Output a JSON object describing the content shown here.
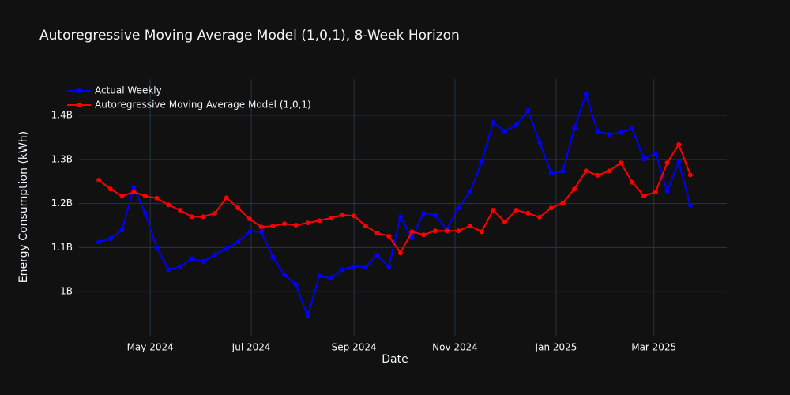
{
  "chart_data": {
    "type": "line",
    "title": "Autoregressive Moving Average Model (1,0,1), 8-Week Horizon",
    "x_label": "Date",
    "y_label": "Energy Consumption (kWh)",
    "grid": true,
    "legend": "top-left",
    "xlim": [
      "2024-03-19",
      "2025-04-14"
    ],
    "xticks": [
      {
        "value": "2024-05-01",
        "label": "May 2024"
      },
      {
        "value": "2024-07-01",
        "label": "Jul 2024"
      },
      {
        "value": "2024-09-01",
        "label": "Sep 2024"
      },
      {
        "value": "2024-11-01",
        "label": "Nov 2024"
      },
      {
        "value": "2025-01-01",
        "label": "Jan 2025"
      },
      {
        "value": "2025-03-01",
        "label": "Mar 2025"
      }
    ],
    "ylim": [
      900000000,
      1482500000
    ],
    "yticks": [
      {
        "value": 1000000000,
        "label": "1B"
      },
      {
        "value": 1100000000,
        "label": "1.1B"
      },
      {
        "value": 1200000000,
        "label": "1.2B"
      },
      {
        "value": 1300000000,
        "label": "1.3B"
      },
      {
        "value": 1400000000,
        "label": "1.4B"
      }
    ],
    "x": [
      "2024-03-31",
      "2024-04-07",
      "2024-04-14",
      "2024-04-21",
      "2024-04-28",
      "2024-05-05",
      "2024-05-12",
      "2024-05-19",
      "2024-05-26",
      "2024-06-02",
      "2024-06-09",
      "2024-06-16",
      "2024-06-23",
      "2024-06-30",
      "2024-07-07",
      "2024-07-14",
      "2024-07-21",
      "2024-07-28",
      "2024-08-04",
      "2024-08-11",
      "2024-08-18",
      "2024-08-25",
      "2024-09-01",
      "2024-09-08",
      "2024-09-15",
      "2024-09-22",
      "2024-09-29",
      "2024-10-06",
      "2024-10-13",
      "2024-10-20",
      "2024-10-27",
      "2024-11-03",
      "2024-11-10",
      "2024-11-17",
      "2024-11-24",
      "2024-12-01",
      "2024-12-08",
      "2024-12-15",
      "2024-12-22",
      "2024-12-29",
      "2025-01-05",
      "2025-01-12",
      "2025-01-19",
      "2025-01-26",
      "2025-02-02",
      "2025-02-09",
      "2025-02-16",
      "2025-02-23",
      "2025-03-02",
      "2025-03-09",
      "2025-03-16",
      "2025-03-23"
    ],
    "series": [
      {
        "name": "Actual Weekly",
        "color": "#0000ff",
        "values": [
          1113000000,
          1120000000,
          1140000000,
          1237000000,
          1178000000,
          1100000000,
          1050000000,
          1057000000,
          1075000000,
          1068000000,
          1084000000,
          1097000000,
          1113000000,
          1136000000,
          1136000000,
          1079000000,
          1038000000,
          1016000000,
          944000000,
          1036000000,
          1030000000,
          1050000000,
          1057000000,
          1056000000,
          1083000000,
          1057000000,
          1170000000,
          1122000000,
          1178000000,
          1174000000,
          1142000000,
          1190000000,
          1226000000,
          1294000000,
          1384000000,
          1364000000,
          1378000000,
          1411000000,
          1339000000,
          1269000000,
          1273000000,
          1371000000,
          1448000000,
          1364000000,
          1357000000,
          1361000000,
          1370000000,
          1301000000,
          1314000000,
          1228000000,
          1294000000,
          1196000000
        ]
      },
      {
        "name": "Autoregressive Moving Average Model (1,0,1)",
        "color": "#ff0000",
        "values": [
          1253000000,
          1233000000,
          1217000000,
          1226000000,
          1217000000,
          1212000000,
          1197000000,
          1185000000,
          1170000000,
          1170000000,
          1178000000,
          1213000000,
          1190000000,
          1165000000,
          1147000000,
          1149000000,
          1154000000,
          1151000000,
          1156000000,
          1161000000,
          1167000000,
          1174000000,
          1172000000,
          1149000000,
          1133000000,
          1126000000,
          1088000000,
          1136000000,
          1129000000,
          1138000000,
          1138000000,
          1138000000,
          1149000000,
          1136000000,
          1185000000,
          1158000000,
          1185000000,
          1178000000,
          1169000000,
          1190000000,
          1201000000,
          1233000000,
          1274000000,
          1264000000,
          1274000000,
          1292000000,
          1248000000,
          1217000000,
          1226000000,
          1292000000,
          1334000000,
          1265000000
        ]
      }
    ]
  }
}
